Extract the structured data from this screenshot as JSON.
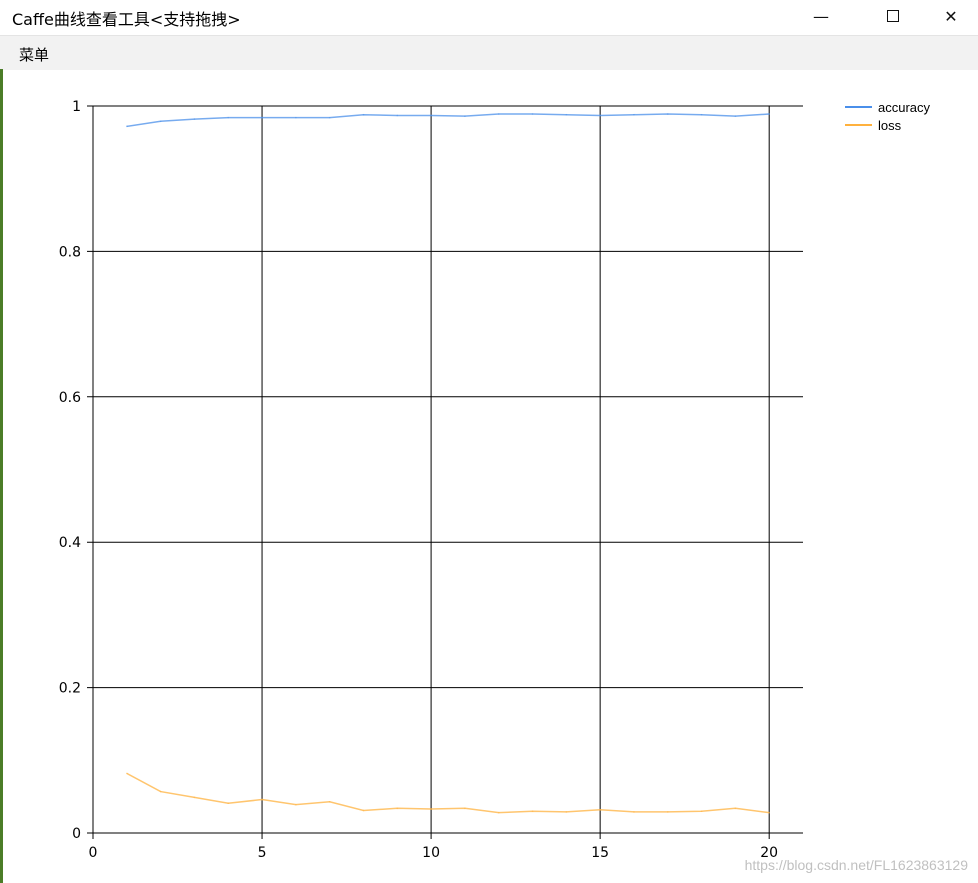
{
  "window": {
    "title": "Caffe曲线查看工具<支持拖拽>",
    "minimize_icon": "minimize-icon",
    "maximize_icon": "maximize-icon",
    "close_icon": "close-icon"
  },
  "menu": {
    "items": [
      {
        "label": "菜单"
      }
    ]
  },
  "watermark": "https://blog.csdn.net/FL1623863129",
  "chart_data": {
    "type": "line",
    "title": "",
    "xlabel": "",
    "ylabel": "",
    "xlim": [
      0,
      21
    ],
    "ylim": [
      0,
      1
    ],
    "x_ticks": [
      "0",
      "5",
      "10",
      "15",
      "20"
    ],
    "y_ticks": [
      "0",
      "0.2",
      "0.4",
      "0.6",
      "0.8",
      "1"
    ],
    "grid": true,
    "legend_position": "top-right",
    "x": [
      1,
      2,
      3,
      4,
      5,
      6,
      7,
      8,
      9,
      10,
      11,
      12,
      13,
      14,
      15,
      16,
      17,
      18,
      19,
      20
    ],
    "series": [
      {
        "name": "accuracy",
        "color": "#4a8fea",
        "values": [
          0.972,
          0.979,
          0.982,
          0.984,
          0.984,
          0.984,
          0.984,
          0.988,
          0.987,
          0.987,
          0.986,
          0.989,
          0.989,
          0.988,
          0.987,
          0.988,
          0.989,
          0.988,
          0.986,
          0.989
        ]
      },
      {
        "name": "loss",
        "color": "#ffb13d",
        "values": [
          0.082,
          0.057,
          0.049,
          0.041,
          0.046,
          0.039,
          0.043,
          0.031,
          0.034,
          0.033,
          0.034,
          0.028,
          0.03,
          0.029,
          0.032,
          0.029,
          0.029,
          0.03,
          0.034,
          0.028
        ]
      }
    ]
  }
}
